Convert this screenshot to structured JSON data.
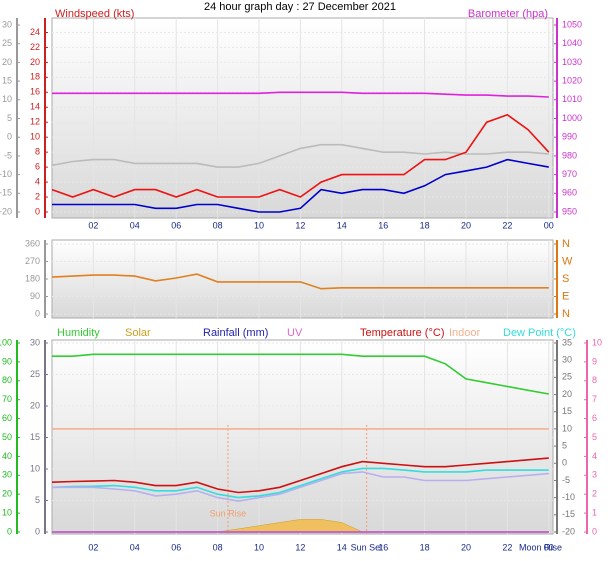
{
  "chart_data": [
    {
      "type": "line",
      "title": "24 hour graph day : 27 December 2021",
      "x": [
        0,
        1,
        2,
        3,
        4,
        5,
        6,
        7,
        8,
        9,
        10,
        11,
        12,
        13,
        14,
        15,
        16,
        17,
        18,
        19,
        20,
        21,
        22,
        23,
        24
      ],
      "xlim": [
        0,
        24
      ],
      "xticks": [
        {
          "value": 2,
          "label": "02"
        },
        {
          "value": 4,
          "label": "04"
        },
        {
          "value": 6,
          "label": "06"
        },
        {
          "value": 8,
          "label": "08"
        },
        10,
        12,
        14,
        16,
        18,
        20,
        22,
        {
          "value": 24,
          "label": "00"
        }
      ],
      "grid": true,
      "yaxes": [
        {
          "label": "Windspeed (kts)",
          "color": "#cc2020",
          "lim": [
            0,
            25
          ],
          "ticks": [
            0,
            2,
            4,
            6,
            8,
            10,
            12,
            14,
            16,
            18,
            20,
            22,
            24
          ]
        },
        {
          "color": "#999999",
          "lim": [
            -20,
            30
          ],
          "ticks": [
            -20,
            -15,
            -10,
            -5,
            0,
            5,
            10,
            15,
            20,
            25,
            30
          ]
        },
        {
          "label": "Barometer (hpa)",
          "color": "#cc33cc",
          "lim": [
            950,
            1050
          ],
          "ticks": [
            950,
            960,
            970,
            980,
            990,
            1000,
            1010,
            1020,
            1030,
            1040,
            1050
          ]
        }
      ],
      "series": [
        {
          "color": "#bbbbbb",
          "axis": 1,
          "values": [
            -7.5,
            -6.5,
            -6,
            -6,
            -7,
            -7,
            -7,
            -7,
            -8,
            -8,
            -7,
            -5,
            -3,
            -2,
            -2,
            -3,
            -4,
            -4,
            -4.5,
            -4,
            -4.5,
            -4.5,
            -4,
            -4,
            -4.5
          ]
        },
        {
          "color": "#ee1111",
          "axis": 0,
          "values": [
            3,
            2,
            3,
            2,
            3,
            3,
            2,
            3,
            2,
            2,
            2,
            3,
            2,
            4,
            5,
            5,
            5,
            5,
            7,
            7,
            8,
            12,
            13,
            11,
            8
          ]
        },
        {
          "color": "#0000cc",
          "axis": 0,
          "values": [
            1,
            1,
            1,
            1,
            1,
            0.5,
            0.5,
            1,
            1,
            0.5,
            0,
            0,
            0.5,
            3,
            2.5,
            3,
            3,
            2.5,
            3.5,
            5,
            5.5,
            6,
            7,
            6.5,
            6
          ]
        },
        {
          "color": "#dd22dd",
          "axis": 2,
          "values": [
            1013.5,
            1013.5,
            1013.5,
            1013.5,
            1013.5,
            1013.5,
            1013.5,
            1013.5,
            1013.5,
            1013.5,
            1013.5,
            1014,
            1014,
            1014,
            1014,
            1013.5,
            1013.5,
            1013.5,
            1013.5,
            1013,
            1012.5,
            1012.5,
            1012,
            1012,
            1011.5
          ]
        }
      ]
    },
    {
      "type": "line",
      "x": [
        0,
        1,
        2,
        3,
        4,
        5,
        6,
        7,
        8,
        9,
        10,
        11,
        12,
        13,
        14,
        15,
        16,
        17,
        18,
        19,
        20,
        21,
        22,
        23,
        24
      ],
      "xlim": [
        0,
        24
      ],
      "xticks": [
        2,
        4,
        6,
        8,
        10,
        12,
        14,
        16,
        18,
        20,
        22,
        24
      ],
      "grid": true,
      "yaxes": [
        {
          "color": "#999999",
          "lim": [
            0,
            360
          ],
          "ticks": [
            0,
            90,
            180,
            270,
            360
          ]
        },
        {
          "color": "#dd7711",
          "lim": [
            0,
            360
          ],
          "ticks": [
            {
              "value": 0,
              "label": "N"
            },
            {
              "value": 90,
              "label": "E"
            },
            {
              "value": 180,
              "label": "S"
            },
            {
              "value": 270,
              "label": "W"
            },
            {
              "value": 360,
              "label": "N"
            }
          ]
        }
      ],
      "series": [
        {
          "color": "#e08020",
          "axis": 0,
          "values": [
            190,
            195,
            200,
            200,
            195,
            170,
            185,
            205,
            165,
            165,
            165,
            165,
            165,
            130,
            135,
            135,
            135,
            135,
            135,
            135,
            135,
            135,
            135,
            135,
            135
          ]
        }
      ]
    },
    {
      "type": "line",
      "x": [
        0,
        1,
        2,
        3,
        4,
        5,
        6,
        7,
        8,
        9,
        10,
        11,
        12,
        13,
        14,
        15,
        16,
        17,
        18,
        19,
        20,
        21,
        22,
        23,
        24
      ],
      "xlim": [
        0,
        24
      ],
      "xticks": [
        {
          "value": 2,
          "label": "02"
        },
        {
          "value": 4,
          "label": "04"
        },
        {
          "value": 6,
          "label": "06"
        },
        {
          "value": 8,
          "label": "08"
        },
        10,
        12,
        14,
        16,
        18,
        20,
        22,
        {
          "value": 24,
          "label": "00"
        }
      ],
      "grid": true,
      "yaxes": [
        {
          "color": "#777788",
          "lim": [
            0,
            30
          ],
          "ticks": [
            0,
            5,
            10,
            15,
            20,
            25,
            30
          ]
        },
        {
          "color": "#22bb22",
          "lim": [
            0,
            100
          ],
          "ticks": [
            0,
            10,
            20,
            30,
            40,
            50,
            60,
            70,
            80,
            90,
            100
          ]
        },
        {
          "color": "#777777",
          "lim": [
            -20,
            35
          ],
          "ticks": [
            -20,
            -15,
            -10,
            -5,
            0,
            5,
            10,
            15,
            20,
            25,
            30,
            35
          ]
        },
        {
          "color": "#ee66aa",
          "lim": [
            0,
            10
          ],
          "ticks": [
            0,
            1,
            2,
            3,
            4,
            5,
            6,
            7,
            8,
            9,
            10
          ]
        }
      ],
      "series": [
        {
          "name": "Humidity",
          "color": "#33cc33",
          "axis": 1,
          "values": [
            93,
            93,
            94,
            94,
            94,
            94,
            94,
            94,
            94,
            94,
            94,
            94,
            94,
            94,
            94,
            93,
            93,
            93,
            93,
            89,
            81,
            79,
            77,
            75,
            73
          ]
        },
        {
          "name": "Solar",
          "color": "#c8a020",
          "fill": "#f0c060",
          "axis": 0,
          "values": [
            0,
            0,
            0,
            0,
            0,
            0,
            0,
            0,
            0,
            0.5,
            1,
            1.5,
            2,
            2,
            1.5,
            0,
            0,
            0,
            0,
            0,
            0,
            0,
            0,
            0,
            0
          ]
        },
        {
          "name": "Rainfall (mm)",
          "color": "#2222aa",
          "axis": 0,
          "values": [
            0,
            0,
            0,
            0,
            0,
            0,
            0,
            0,
            0,
            0,
            0,
            0,
            0,
            0,
            0,
            0,
            0,
            0,
            0,
            0,
            0,
            0,
            0,
            0,
            0
          ]
        },
        {
          "name": "UV",
          "color": "#dd66cc",
          "axis": 3,
          "values": [
            0,
            0,
            0,
            0,
            0,
            0,
            0,
            0,
            0,
            0,
            0,
            0,
            0,
            0,
            0,
            0,
            0,
            0,
            0,
            0,
            0,
            0,
            0,
            0,
            0
          ]
        },
        {
          "name": "Temperature (°C)",
          "color": "#cc1111",
          "axis": 2,
          "values": [
            -5.5,
            -5.3,
            -5.2,
            -5,
            -5.5,
            -6.5,
            -6.5,
            -5.5,
            -7.5,
            -8.5,
            -8,
            -7,
            -5,
            -3,
            -1,
            0.5,
            0,
            -0.5,
            -1,
            -1,
            -0.5,
            0,
            0.5,
            1,
            1.5
          ]
        },
        {
          "name": "Indoor",
          "color": "#f5b090",
          "axis": 2,
          "values": [
            10,
            10,
            10,
            10,
            10,
            10,
            10,
            10,
            10,
            10,
            10,
            10,
            10,
            10,
            10,
            10,
            10,
            10,
            10,
            10,
            10,
            10,
            10,
            10,
            10
          ]
        },
        {
          "name": "Dew Point (°C)",
          "color": "#33dddd",
          "axis": 2,
          "values": [
            -7,
            -6.8,
            -6.7,
            -6.5,
            -7,
            -8,
            -8,
            -7,
            -9,
            -10,
            -9.5,
            -8.5,
            -6.5,
            -4.5,
            -2.5,
            -1.5,
            -1.5,
            -2,
            -2.5,
            -2.5,
            -2.5,
            -2,
            -2,
            -2,
            -2
          ]
        },
        {
          "color": "#b8b0ee",
          "axis": 2,
          "values": [
            -7,
            -7,
            -7,
            -7.5,
            -8,
            -9.5,
            -9,
            -8,
            -10,
            -11,
            -10,
            -9,
            -7,
            -5,
            -3,
            -2.5,
            -4,
            -4,
            -5,
            -5,
            -5,
            -4.5,
            -4,
            -3.5,
            -3
          ]
        }
      ],
      "annotations": [
        {
          "text": "Sun Rise",
          "x": 8.5
        },
        {
          "text": "Sun Set",
          "x": 15.2
        },
        {
          "text": "Moon Rise",
          "x": 23.6
        }
      ]
    }
  ]
}
